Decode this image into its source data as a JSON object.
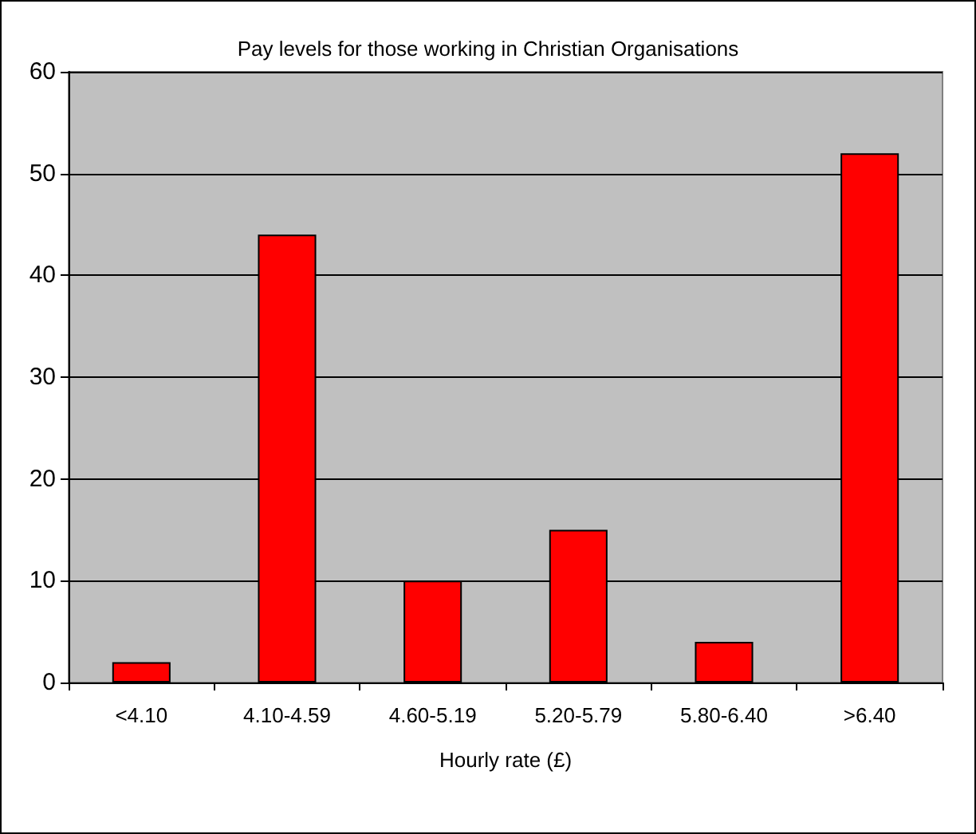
{
  "chart_data": {
    "type": "bar",
    "title": "Pay levels for those working in Christian Organisations",
    "xlabel": "Hourly rate (£)",
    "categories": [
      "<4.10",
      "4.10-4.59",
      "4.60-5.19",
      "5.20-5.79",
      "5.80-6.40",
      ">6.40"
    ],
    "values": [
      2,
      44,
      10,
      15,
      4,
      52
    ],
    "color": "#ff0000",
    "ylim": [
      0,
      60
    ],
    "yticks": [
      0,
      10,
      20,
      30,
      40,
      50,
      60
    ],
    "grid": "y"
  }
}
